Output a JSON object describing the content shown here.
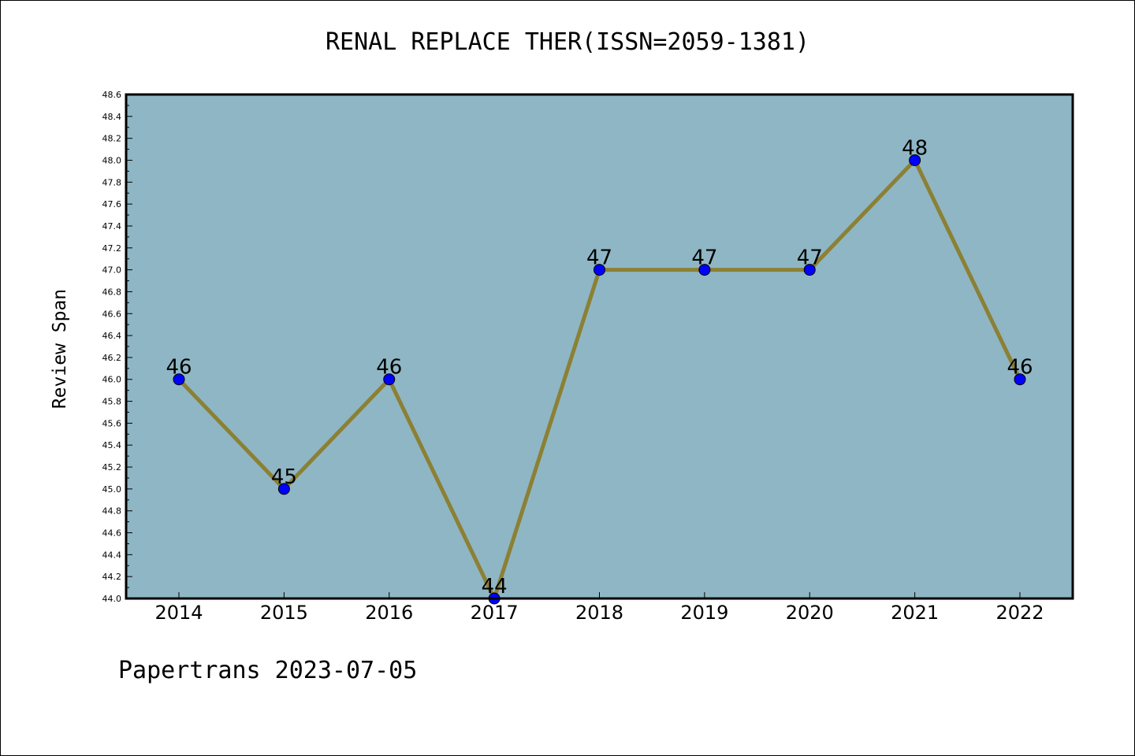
{
  "header": {
    "title": "RENAL REPLACE THER(ISSN=2059-1381)"
  },
  "footer": {
    "text": "Papertrans 2023-07-05"
  },
  "chart_data": {
    "type": "line",
    "title": "RENAL REPLACE THER(ISSN=2059-1381)",
    "xlabel": "",
    "ylabel": "Review Span",
    "categories": [
      "2014",
      "2015",
      "2016",
      "2017",
      "2018",
      "2019",
      "2020",
      "2021",
      "2022"
    ],
    "series": [
      {
        "values": [
          46,
          45,
          46,
          44,
          47,
          47,
          47,
          48,
          46
        ],
        "line_color": "#8b8034",
        "marker_color": "#0000ff"
      }
    ],
    "data_labels": [
      "46",
      "45",
      "46",
      "44",
      "47",
      "47",
      "47",
      "48",
      "46"
    ],
    "ylim": [
      44.0,
      48.6
    ],
    "ytick_step": 0.2,
    "ytick_decimals": 1,
    "plot_background": "#8fb6c4",
    "grid": false,
    "legend": "none"
  }
}
